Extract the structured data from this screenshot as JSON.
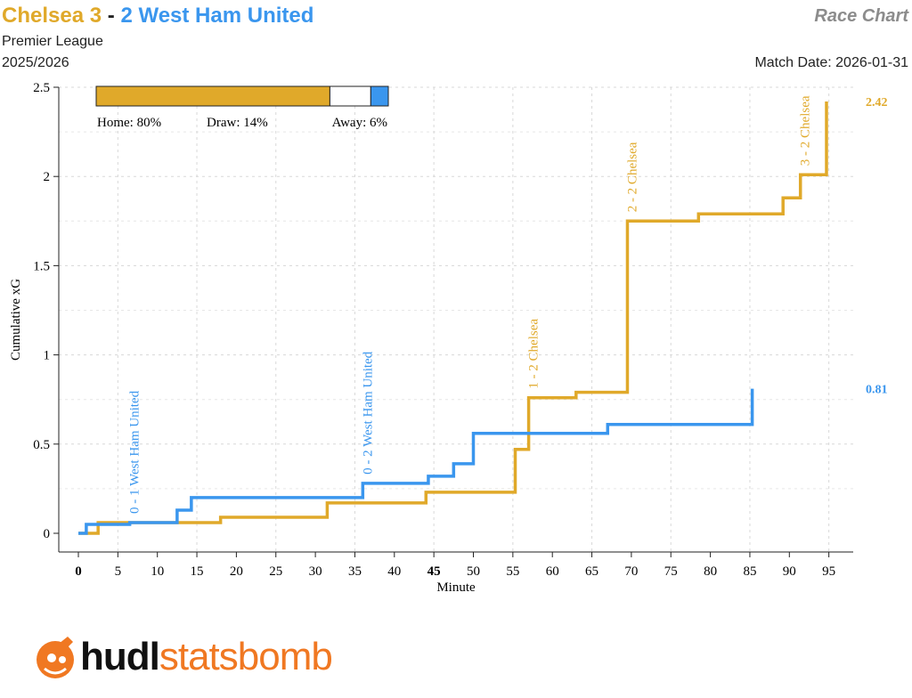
{
  "header": {
    "home_team": "Chelsea",
    "home_score": "3",
    "separator": "-",
    "away_score": "2",
    "away_team": "West Ham United",
    "competition": "Premier League",
    "season": "2025/2026",
    "chart_type_label": "Race Chart",
    "match_date": "Match Date: 2026-01-31"
  },
  "colors": {
    "home": "#e0a92a",
    "away": "#3a96ee",
    "grid": "#d8d8d8"
  },
  "win_probability": {
    "home_label": "Home: 80%",
    "draw_label": "Draw: 14%",
    "away_label": "Away: 6%",
    "home": 0.8,
    "draw": 0.14,
    "away": 0.06
  },
  "chart_data": {
    "type": "line",
    "xlabel": "Minute",
    "ylabel": "Cumulative xG",
    "xlim": [
      0,
      97
    ],
    "ylim": [
      0,
      2.5
    ],
    "xticks": [
      0,
      5,
      10,
      15,
      20,
      25,
      30,
      35,
      40,
      45,
      50,
      55,
      60,
      65,
      70,
      75,
      80,
      85,
      90,
      95
    ],
    "xtick_bold": [
      0,
      45
    ],
    "yticks": [
      0,
      0.5,
      1,
      1.5,
      2,
      2.5
    ],
    "ytick_labels": [
      "0",
      "0.5",
      "1",
      "1.5",
      "2",
      "2.5"
    ],
    "series": [
      {
        "team": "home",
        "end_label": "2.42",
        "steps": [
          [
            0,
            0
          ],
          [
            2.5,
            0.06
          ],
          [
            12.5,
            0.06
          ],
          [
            18,
            0.09
          ],
          [
            31.5,
            0.17
          ],
          [
            44,
            0.23
          ],
          [
            55.3,
            0.47
          ],
          [
            57,
            0.76
          ],
          [
            63,
            0.79
          ],
          [
            69.5,
            1.75
          ],
          [
            78.5,
            1.79
          ],
          [
            89.2,
            1.88
          ],
          [
            91.4,
            2.01
          ],
          [
            94.7,
            2.42
          ]
        ]
      },
      {
        "team": "away",
        "end_label": "0.81",
        "steps": [
          [
            0,
            0
          ],
          [
            1,
            0.05
          ],
          [
            6.5,
            0.06
          ],
          [
            12.5,
            0.13
          ],
          [
            14.3,
            0.2
          ],
          [
            36,
            0.28
          ],
          [
            44.3,
            0.32
          ],
          [
            47.5,
            0.39
          ],
          [
            50,
            0.56
          ],
          [
            67,
            0.61
          ],
          [
            85.3,
            0.81
          ]
        ]
      }
    ],
    "goals": [
      {
        "minute": 6.5,
        "team": "away",
        "label": "0 - 1 West Ham United"
      },
      {
        "minute": 36,
        "team": "away",
        "label": "0 - 2 West Ham United"
      },
      {
        "minute": 57,
        "team": "home",
        "label": "1 - 2 Chelsea"
      },
      {
        "minute": 69.5,
        "team": "home",
        "label": "2 - 2 Chelsea"
      },
      {
        "minute": 91.4,
        "team": "home",
        "label": "3 - 2 Chelsea"
      }
    ]
  },
  "branding": {
    "logo_part1": "hudl",
    "logo_part2": "statsbomb",
    "logo_icon": "statsbomb-bomb-icon"
  }
}
